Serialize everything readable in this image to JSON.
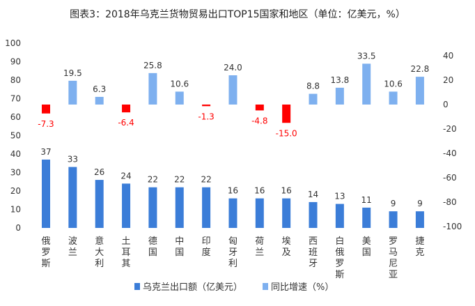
{
  "chart_data": {
    "type": "bar",
    "title": "图表3：2018年乌克兰货物贸易出口TOP15国家和地区（单位：亿美元，%）",
    "categories": [
      "俄罗斯",
      "波兰",
      "意大利",
      "土耳其",
      "德国",
      "中国",
      "印度",
      "匈牙利",
      "荷兰",
      "埃及",
      "西班牙",
      "白俄罗斯",
      "美国",
      "罗马尼亚",
      "捷克"
    ],
    "series": [
      {
        "name": "乌克兰出口额（亿美元）",
        "axis": "left",
        "color": "#3b7dd8",
        "values": [
          37,
          33,
          26,
          24,
          22,
          22,
          22,
          16,
          16,
          16,
          14,
          13,
          11,
          9,
          9
        ]
      },
      {
        "name": "同比增速（%）",
        "axis": "right",
        "color": "#7eb0ef",
        "negative_color": "#ff0000",
        "values": [
          -7.3,
          19.5,
          6.3,
          -6.4,
          25.8,
          10.6,
          -1.3,
          24.0,
          -4.8,
          -15.0,
          8.8,
          13.8,
          33.5,
          10.6,
          22.8
        ]
      }
    ],
    "y_left": {
      "range": [
        0,
        100
      ],
      "ticks": [
        0,
        10,
        20,
        30,
        40,
        50,
        60,
        70,
        80,
        90,
        100
      ]
    },
    "y_right": {
      "range": [
        -100,
        40
      ],
      "ticks": [
        40,
        20,
        0,
        -20,
        -40,
        -60,
        -80,
        -100
      ]
    },
    "grid": false,
    "legend_position": "bottom"
  }
}
